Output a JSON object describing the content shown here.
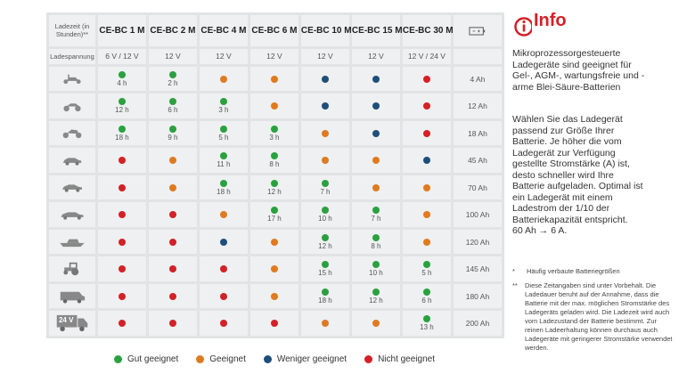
{
  "colors": {
    "good": "#2aa13f",
    "suitable": "#e07a1f",
    "less": "#1e4f7b",
    "not": "#d42027"
  },
  "table": {
    "header_label": "Ladezeit (in Stunden)**",
    "voltage_label": "Ladespannung",
    "battery_icon": "battery-icon",
    "models": [
      "CE-BC 1 M",
      "CE-BC 2 M",
      "CE-BC 4 M",
      "CE-BC 6 M",
      "CE-BC 10 M",
      "CE-BC 15 M",
      "CE-BC 30 M"
    ],
    "voltages": [
      "6 V / 12 V",
      "12 V",
      "12 V",
      "12 V",
      "12 V",
      "12 V",
      "12 V / 24 V"
    ],
    "rows": [
      {
        "vehicle": "scooter-icon",
        "capacity": "4 Ah",
        "cells": [
          {
            "s": "good",
            "h": "4 h"
          },
          {
            "s": "good",
            "h": "2 h"
          },
          {
            "s": "suitable",
            "h": ""
          },
          {
            "s": "suitable",
            "h": ""
          },
          {
            "s": "less",
            "h": ""
          },
          {
            "s": "less",
            "h": ""
          },
          {
            "s": "not",
            "h": ""
          }
        ]
      },
      {
        "vehicle": "quad-icon",
        "capacity": "12 Ah",
        "cells": [
          {
            "s": "good",
            "h": "12 h"
          },
          {
            "s": "good",
            "h": "6 h"
          },
          {
            "s": "good",
            "h": "3 h"
          },
          {
            "s": "suitable",
            "h": ""
          },
          {
            "s": "less",
            "h": ""
          },
          {
            "s": "less",
            "h": ""
          },
          {
            "s": "not",
            "h": ""
          }
        ]
      },
      {
        "vehicle": "motorcycle-icon",
        "capacity": "18 Ah",
        "cells": [
          {
            "s": "good",
            "h": "18 h"
          },
          {
            "s": "good",
            "h": "9 h"
          },
          {
            "s": "good",
            "h": "5 h"
          },
          {
            "s": "good",
            "h": "3 h"
          },
          {
            "s": "suitable",
            "h": ""
          },
          {
            "s": "less",
            "h": ""
          },
          {
            "s": "not",
            "h": ""
          }
        ]
      },
      {
        "vehicle": "small-car-icon",
        "capacity": "45 Ah",
        "cells": [
          {
            "s": "not",
            "h": ""
          },
          {
            "s": "suitable",
            "h": ""
          },
          {
            "s": "good",
            "h": "11 h"
          },
          {
            "s": "good",
            "h": "8 h"
          },
          {
            "s": "suitable",
            "h": ""
          },
          {
            "s": "suitable",
            "h": ""
          },
          {
            "s": "less",
            "h": ""
          }
        ]
      },
      {
        "vehicle": "sedan-icon",
        "capacity": "70 Ah",
        "cells": [
          {
            "s": "not",
            "h": ""
          },
          {
            "s": "suitable",
            "h": ""
          },
          {
            "s": "good",
            "h": "18 h"
          },
          {
            "s": "good",
            "h": "12 h"
          },
          {
            "s": "good",
            "h": "7 h"
          },
          {
            "s": "suitable",
            "h": ""
          },
          {
            "s": "suitable",
            "h": ""
          }
        ]
      },
      {
        "vehicle": "limousine-icon",
        "capacity": "100 Ah",
        "cells": [
          {
            "s": "not",
            "h": ""
          },
          {
            "s": "not",
            "h": ""
          },
          {
            "s": "suitable",
            "h": ""
          },
          {
            "s": "good",
            "h": "17 h"
          },
          {
            "s": "good",
            "h": "10 h"
          },
          {
            "s": "good",
            "h": "7 h"
          },
          {
            "s": "suitable",
            "h": ""
          }
        ]
      },
      {
        "vehicle": "boat-icon",
        "capacity": "120 Ah",
        "cells": [
          {
            "s": "not",
            "h": ""
          },
          {
            "s": "not",
            "h": ""
          },
          {
            "s": "less",
            "h": ""
          },
          {
            "s": "suitable",
            "h": ""
          },
          {
            "s": "good",
            "h": "12 h"
          },
          {
            "s": "good",
            "h": "8 h"
          },
          {
            "s": "suitable",
            "h": ""
          }
        ]
      },
      {
        "vehicle": "tractor-icon",
        "capacity": "145 Ah",
        "cells": [
          {
            "s": "not",
            "h": ""
          },
          {
            "s": "not",
            "h": ""
          },
          {
            "s": "not",
            "h": ""
          },
          {
            "s": "suitable",
            "h": ""
          },
          {
            "s": "good",
            "h": "15 h"
          },
          {
            "s": "good",
            "h": "10 h"
          },
          {
            "s": "good",
            "h": "5 h"
          }
        ]
      },
      {
        "vehicle": "camper-icon",
        "capacity": "180 Ah",
        "cells": [
          {
            "s": "not",
            "h": ""
          },
          {
            "s": "not",
            "h": ""
          },
          {
            "s": "not",
            "h": ""
          },
          {
            "s": "suitable",
            "h": ""
          },
          {
            "s": "good",
            "h": "18 h"
          },
          {
            "s": "good",
            "h": "12 h"
          },
          {
            "s": "good",
            "h": "6 h"
          }
        ]
      },
      {
        "vehicle": "truck-24v-icon",
        "truck_label": "24 V",
        "capacity": "200 Ah",
        "cells": [
          {
            "s": "not",
            "h": ""
          },
          {
            "s": "not",
            "h": ""
          },
          {
            "s": "not",
            "h": ""
          },
          {
            "s": "not",
            "h": ""
          },
          {
            "s": "suitable",
            "h": ""
          },
          {
            "s": "suitable",
            "h": ""
          },
          {
            "s": "good",
            "h": "13 h"
          }
        ]
      }
    ]
  },
  "legend": [
    {
      "s": "good",
      "label": "Gut geeignet"
    },
    {
      "s": "suitable",
      "label": "Geeignet"
    },
    {
      "s": "less",
      "label": "Weniger geeignet"
    },
    {
      "s": "not",
      "label": "Nicht geeignet"
    }
  ],
  "info": {
    "title": "Info",
    "icon": "info-icon",
    "p1": "Mikroprozessorgesteuerte Ladegeräte sind geeignet für Gel-, AGM-, wartungsfreie und -arme Blei-Säure-Batterien",
    "p2": "Wählen Sie das Ladegerät passend zur Größe Ihrer Batterie. Je höher die vom Ladegerät zur Verfügung gestellte Stromstärke (A) ist, desto schneller wird Ihre Batterie aufgeladen. Optimal ist ein Ladegerät mit einem Ladestrom der 1/10 der Batteriekapazität entspricht.",
    "example": "60 Ah → 6 A.",
    "fn1_mark": "*",
    "fn1": "Häufig verbaute Batteriegrößen",
    "fn2_mark": "**",
    "fn2": "Diese Zeitangaben sind unter Vorbehalt. Die Ladedauer beruht auf der Annahme, dass die Batterie mit der max. möglichen Stromstärke des Ladegeräts geladen wird. Die Ladezeit wird auch vom Ladezustand der Batterie bestimmt. Zur reinen Ladeerhaltung können durchaus auch Ladegeräte mit geringerer Stromstärke verwendet werden."
  }
}
